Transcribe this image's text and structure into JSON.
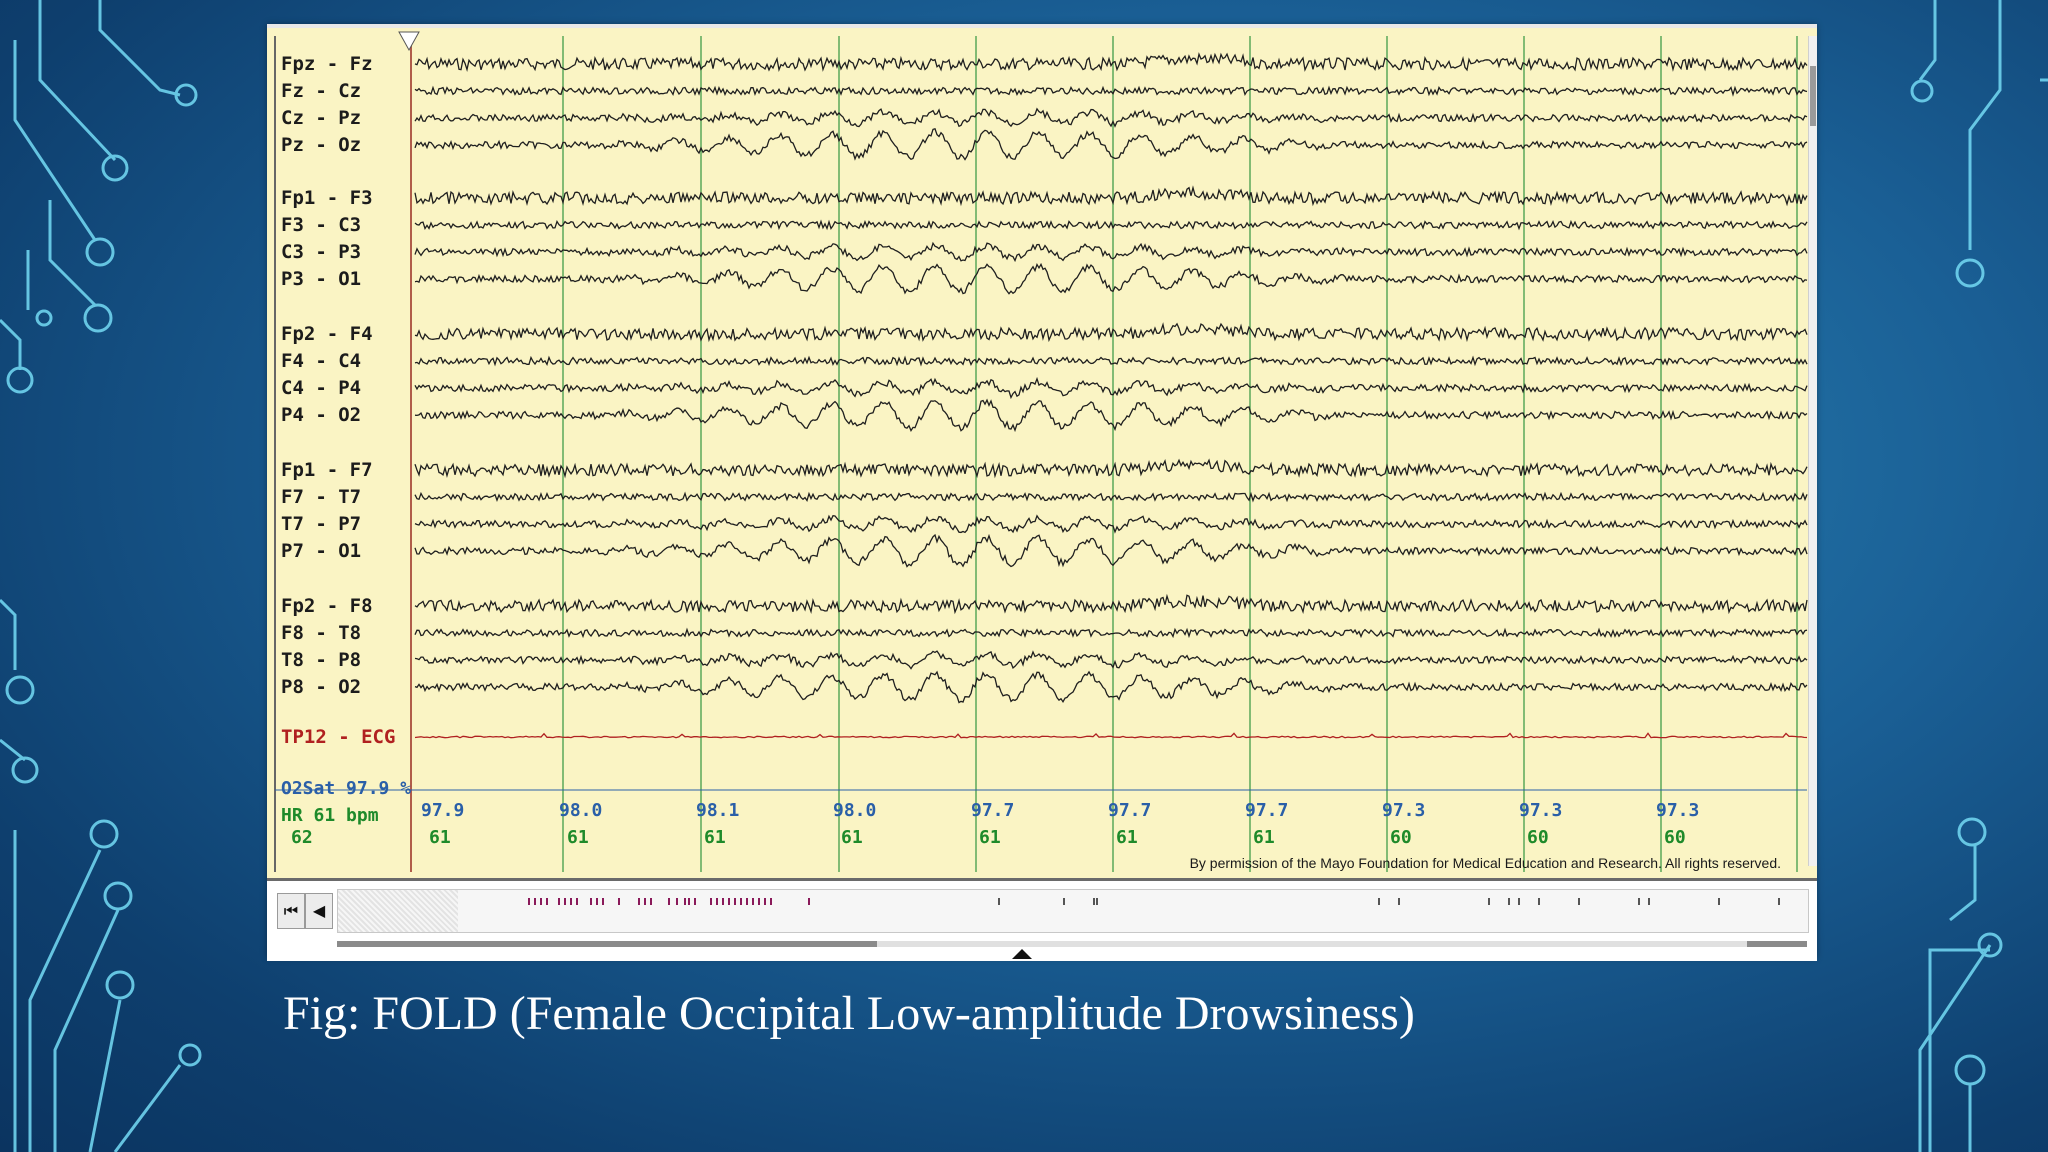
{
  "caption": "Fig: FOLD (Female Occipital Low-amplitude Drowsiness)",
  "permission": "By permission of the Mayo Foundation for Medical Education and Research. All rights reserved.",
  "channels": [
    "Fpz - Fz",
    "Fz - Cz",
    "Cz - Pz",
    "Pz - Oz",
    "Fp1 - F3",
    "F3 - C3",
    "C3 - P3",
    "P3 - O1",
    "Fp2 - F4",
    "F4 - C4",
    "C4 - P4",
    "P4 - O2",
    "Fp1 - F7",
    "F7 - T7",
    "T7 - P7",
    "P7 - O1",
    "Fp2 - F8",
    "F8 - T8",
    "T8 - P8",
    "P8 - O2"
  ],
  "ecg_channel": "TP12 - ECG",
  "o2sat_label": "O2Sat 97.9 %",
  "hr_label": "HR  61 bpm",
  "hr_first": "62",
  "o2_values": [
    "97.9",
    "98.0",
    "98.1",
    "98.0",
    "97.7",
    "97.7",
    "97.7",
    "97.3",
    "97.3",
    "97.3"
  ],
  "hr_values": [
    "61",
    "61",
    "61",
    "61",
    "61",
    "61",
    "61",
    "60",
    "60",
    "60"
  ],
  "nav": {
    "first_icon": "skip-to-start-icon",
    "prev_icon": "step-back-icon"
  },
  "colors": {
    "trace": "#1f1f1f",
    "ecg": "#b02020",
    "o2": "#2a5fa8",
    "hr": "#1e8a2a",
    "grid": "#5aa85a",
    "paper": "#faf4c4"
  }
}
